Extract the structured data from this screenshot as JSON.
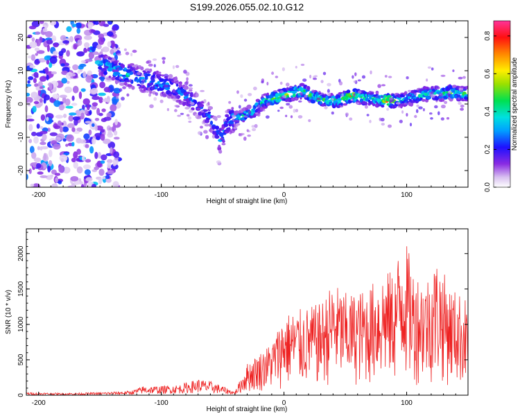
{
  "title": "S199.2026.055.02.10.G12",
  "chart_data": [
    {
      "type": "heatmap",
      "name": "spectrogram",
      "xlabel": "Height of straight line (km)",
      "ylabel": "Frequency (Hz)",
      "xlim": [
        -210,
        150
      ],
      "ylim": [
        -25,
        25
      ],
      "xticks": [
        -200,
        -100,
        0,
        100
      ],
      "yticks": [
        -20,
        -10,
        0,
        10,
        20
      ],
      "colorbar": {
        "label": "Normalized spectral amplitude",
        "range": [
          0.0,
          0.88
        ],
        "ticks": [
          0.0,
          0.2,
          0.4,
          0.6,
          0.8
        ]
      },
      "ridge": {
        "description": "dominant frequency track vs. height",
        "x": [
          -150,
          -130,
          -110,
          -90,
          -75,
          -60,
          -52,
          -45,
          -35,
          -25,
          -15,
          -5,
          5,
          15,
          25,
          35,
          45,
          55,
          65,
          75,
          85,
          95,
          105,
          115,
          125,
          135,
          145
        ],
        "freq": [
          12,
          9,
          7,
          5,
          1,
          -4,
          -11,
          -5,
          -4,
          -2,
          1,
          2,
          3,
          4,
          2,
          1,
          1,
          2.5,
          2,
          1.5,
          1,
          1,
          2,
          3,
          3,
          3.5,
          3
        ],
        "amplitude": [
          0.4,
          0.45,
          0.4,
          0.35,
          0.3,
          0.3,
          0.35,
          0.4,
          0.45,
          0.5,
          0.5,
          0.6,
          0.6,
          0.65,
          0.55,
          0.55,
          0.5,
          0.8,
          0.55,
          0.5,
          0.85,
          0.45,
          0.45,
          0.5,
          0.5,
          0.55,
          0.5
        ]
      }
    },
    {
      "type": "line",
      "name": "snr",
      "xlabel": "Height of straight line (km)",
      "ylabel": "SNR (10 * v/v)",
      "xlim": [
        -210,
        150
      ],
      "ylim": [
        0,
        2350
      ],
      "xticks": [
        -200,
        -100,
        0,
        100
      ],
      "yticks": [
        0,
        500,
        1000,
        1500,
        2000
      ],
      "color": "#ee2222",
      "series": [
        {
          "name": "SNR envelope",
          "x": [
            -210,
            -180,
            -150,
            -125,
            -115,
            -100,
            -85,
            -70,
            -60,
            -50,
            -40,
            -35,
            -30,
            -20,
            -10,
            0,
            10,
            20,
            30,
            40,
            50,
            60,
            70,
            80,
            90,
            97,
            105,
            115,
            125,
            135,
            150
          ],
          "y": [
            40,
            30,
            40,
            60,
            130,
            130,
            150,
            230,
            200,
            130,
            50,
            250,
            450,
            600,
            750,
            1150,
            1200,
            1250,
            1300,
            1600,
            1450,
            1450,
            1550,
            1750,
            1750,
            2350,
            1800,
            1650,
            1950,
            1550,
            1350
          ]
        }
      ]
    }
  ]
}
